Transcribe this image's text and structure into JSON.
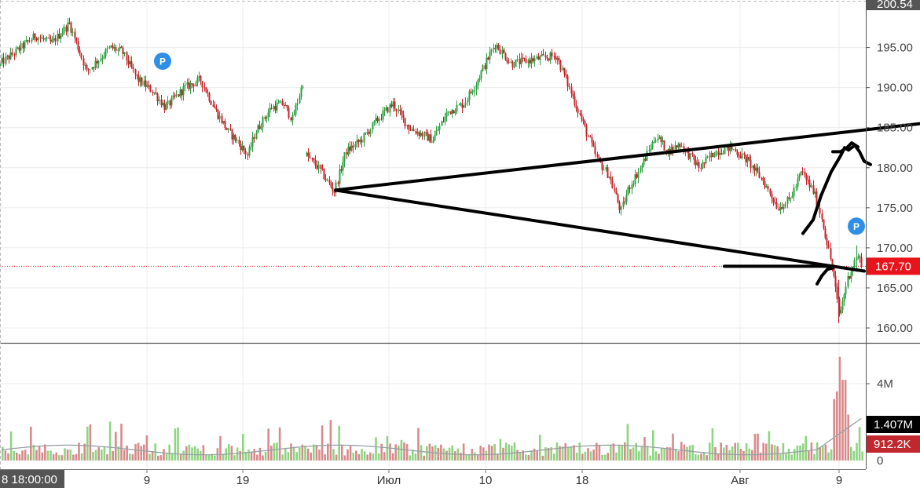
{
  "chart_data": {
    "type": "candlestick",
    "price_axis": {
      "ticks": [
        "200.54",
        "195.00",
        "190.00",
        "185.00",
        "180.00",
        "175.00",
        "170.00",
        "165.00",
        "160.00"
      ],
      "ylim": [
        159,
        200.54
      ]
    },
    "current_price": {
      "value": 167.7,
      "label": "167.70",
      "color": "#e8131b"
    },
    "volume_axis": {
      "ticks": [
        "4M",
        "0"
      ],
      "labels": [
        {
          "text": "1.407M",
          "value": 1.407,
          "color": "#000000"
        },
        {
          "text": "912.2K",
          "value": 0.912,
          "color": "#c0282d"
        }
      ]
    },
    "x_axis": {
      "current_time_label": "8 18:00:00",
      "ticks": [
        "9",
        "19",
        "Июл",
        "10",
        "18",
        "Авг",
        "9"
      ]
    },
    "segments": [
      {
        "start": 0,
        "end": 386,
        "points": [
          [
            0,
            193
          ],
          [
            20,
            194.5
          ],
          [
            45,
            196.5
          ],
          [
            65,
            195.5
          ],
          [
            88,
            198
          ],
          [
            110,
            192
          ],
          [
            140,
            195
          ],
          [
            155,
            194.5
          ],
          [
            175,
            191
          ],
          [
            195,
            189.5
          ],
          [
            210,
            187.5
          ],
          [
            235,
            190
          ],
          [
            255,
            191
          ],
          [
            275,
            187
          ],
          [
            290,
            184.5
          ],
          [
            300,
            183.5
          ],
          [
            315,
            181.5
          ],
          [
            325,
            184.5
          ],
          [
            345,
            187.5
          ],
          [
            360,
            188
          ],
          [
            372,
            186
          ],
          [
            386,
            191
          ]
        ]
      },
      {
        "start": 390,
        "end": 1098,
        "points": [
          [
            390,
            181.5
          ],
          [
            405,
            180
          ],
          [
            425,
            177
          ],
          [
            440,
            182
          ],
          [
            460,
            183.5
          ],
          [
            480,
            186
          ],
          [
            500,
            188
          ],
          [
            520,
            185
          ],
          [
            550,
            183.5
          ],
          [
            570,
            187
          ],
          [
            590,
            188
          ],
          [
            605,
            190.5
          ],
          [
            630,
            195.5
          ],
          [
            650,
            193
          ],
          [
            680,
            193.5
          ],
          [
            708,
            194
          ],
          [
            720,
            191
          ],
          [
            740,
            186
          ],
          [
            760,
            181
          ],
          [
            775,
            179
          ],
          [
            790,
            174.5
          ],
          [
            800,
            177.5
          ],
          [
            815,
            180
          ],
          [
            835,
            184
          ],
          [
            850,
            182
          ],
          [
            865,
            183
          ],
          [
            890,
            180
          ],
          [
            910,
            182
          ],
          [
            930,
            182.5
          ],
          [
            950,
            181
          ],
          [
            970,
            178.5
          ],
          [
            990,
            175
          ],
          [
            1005,
            176
          ],
          [
            1020,
            179.5
          ],
          [
            1035,
            177
          ],
          [
            1045,
            174
          ],
          [
            1060,
            167
          ],
          [
            1068,
            161.5
          ],
          [
            1078,
            166
          ],
          [
            1090,
            169
          ],
          [
            1098,
            168
          ]
        ]
      }
    ],
    "drawings": {
      "lines": [
        {
          "from": [
            427,
            177.2
          ],
          "to": [
            1171,
            185.5
          ]
        },
        {
          "from": [
            427,
            177.2
          ],
          "to": [
            1100,
            167.1
          ]
        },
        {
          "from": [
            922,
            167.7
          ],
          "to": [
            1058,
            167.7
          ]
        }
      ],
      "scribbles": [
        [
          [
            1040,
            165.5
          ],
          [
            1046,
            166.5
          ],
          [
            1053,
            167.3
          ],
          [
            1060,
            167.5
          ]
        ],
        [
          [
            1022,
            171.8
          ],
          [
            1035,
            173.5
          ],
          [
            1045,
            176.5
          ],
          [
            1058,
            179.5
          ],
          [
            1070,
            181.5
          ],
          [
            1075,
            182.5
          ],
          [
            1080,
            182.2
          ],
          [
            1088,
            182.8
          ],
          [
            1094,
            182
          ],
          [
            1100,
            180.8
          ],
          [
            1108,
            180.4
          ]
        ],
        [
          [
            1060,
            182
          ],
          [
            1070,
            182
          ],
          [
            1078,
            182.5
          ],
          [
            1084,
            183.1
          ],
          [
            1092,
            182.6
          ]
        ]
      ]
    },
    "markers": [
      {
        "text": "P",
        "x": 207,
        "price": 193.3
      },
      {
        "text": "P",
        "x": 1090,
        "price": 172.7
      }
    ]
  }
}
